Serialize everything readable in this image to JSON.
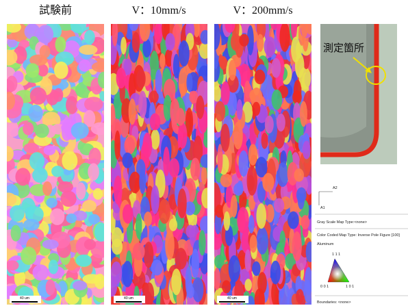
{
  "panels": [
    {
      "title": "試験前",
      "scale_bar": "40 um"
    },
    {
      "title": "V：10mm/s",
      "scale_bar": "40 um"
    },
    {
      "title": "V：200mm/s",
      "scale_bar": "40 um"
    }
  ],
  "inset": {
    "label": "測定箇所"
  },
  "legend": {
    "axis_x": "A2",
    "axis_y": "A1",
    "gray_scale": "Gray Scale Map Type:<none>",
    "color_coded": "Color Coded Map Type: Inverse Pole Figure [100]",
    "material": "Aluminum",
    "triangle": {
      "top": "1 1 1",
      "left": "0 0 1",
      "right": "1 0 1"
    },
    "boundaries": "Boundaries: <none>"
  }
}
